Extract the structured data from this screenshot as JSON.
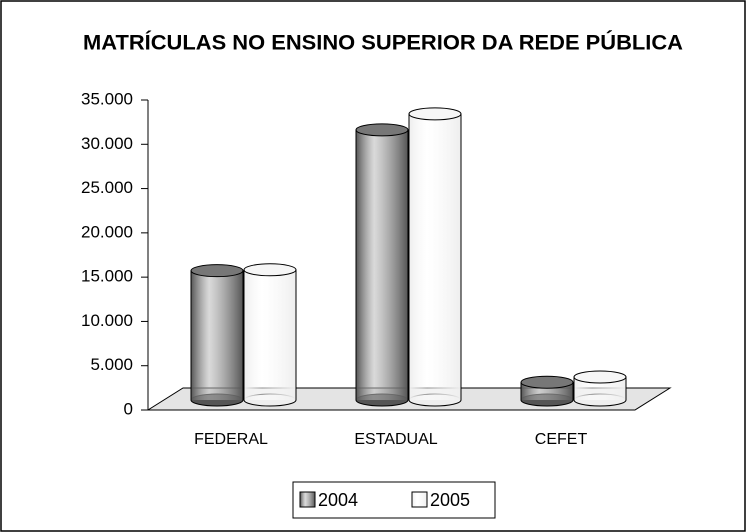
{
  "chart_data": {
    "type": "bar",
    "title": "MATRÍCULAS NO ENSINO SUPERIOR DA REDE PÚBLICA",
    "categories": [
      "FEDERAL",
      "ESTADUAL",
      "CEFET"
    ],
    "series": [
      {
        "name": "2004",
        "color": "#555555",
        "values": [
          14600,
          30500,
          2000
        ]
      },
      {
        "name": "2005",
        "color": "#eeeeee",
        "values": [
          14700,
          32300,
          2600
        ]
      }
    ],
    "ylim": [
      0,
      35000
    ],
    "yticks": [
      0,
      {
        "value": 5000,
        "label": "5.000"
      },
      {
        "value": 10000,
        "label": "10.000"
      },
      {
        "value": 15000,
        "label": "15.000"
      },
      {
        "value": 20000,
        "label": "20.000"
      },
      {
        "value": 25000,
        "label": "25.000"
      },
      {
        "value": 30000,
        "label": "30.000"
      },
      {
        "value": 35000,
        "label": "35.000"
      }
    ],
    "legend": "bottom"
  }
}
